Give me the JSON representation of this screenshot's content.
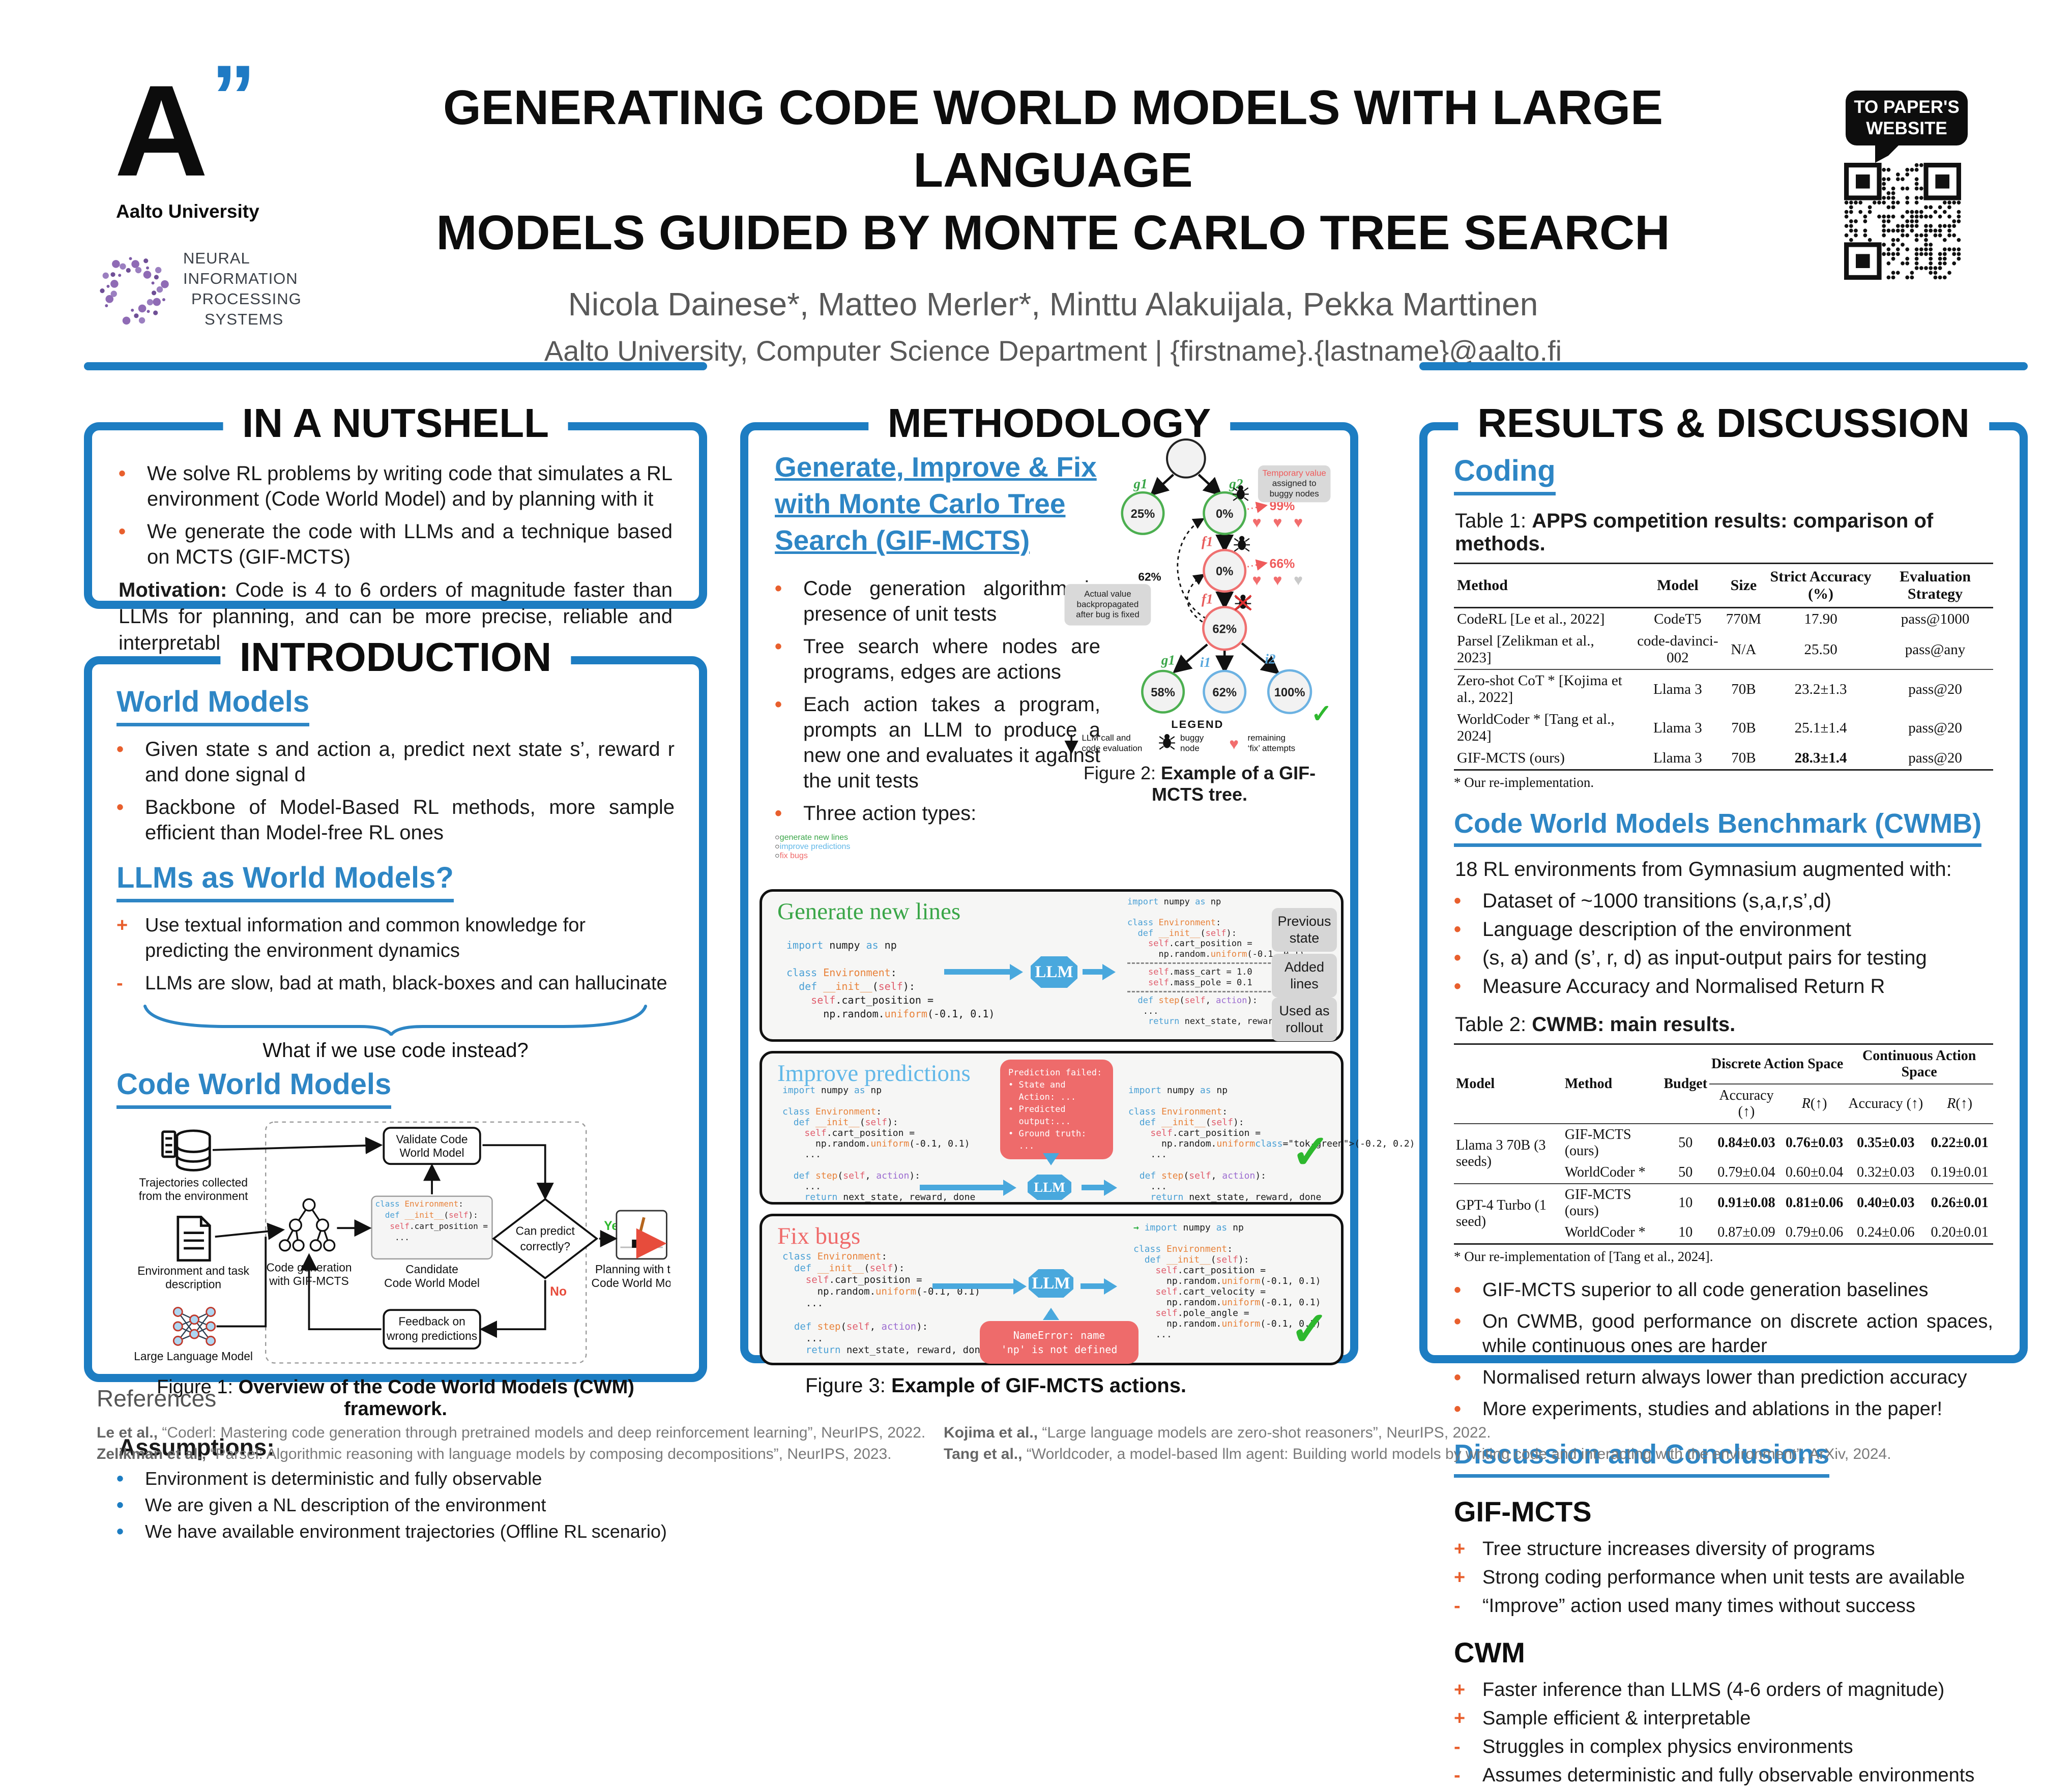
{
  "colors": {
    "accent_blue": "#1d7dc2",
    "link_blue": "#2e86c5",
    "orange": "#e85f2d",
    "green": "#3aa648",
    "light_blue": "#62b8e8",
    "red": "#ef6a6a"
  },
  "icons": {
    "heart": "♥",
    "check": "✓",
    "right_arrow": "→",
    "bullet": "•",
    "circle": "○",
    "plus": "+",
    "minus": "-"
  },
  "header": {
    "aalto_a": "A",
    "aalto_quotes": "”",
    "aalto_caption": "Aalto University",
    "neurips_lines": [
      "NEURAL",
      "INFORMATION",
      "PROCESSING",
      "SYSTEMS"
    ],
    "title_line1": "GENERATING CODE WORLD MODELS WITH LARGE LANGUAGE",
    "title_line2": "MODELS GUIDED BY MONTE CARLO TREE SEARCH",
    "authors": "Nicola Dainese*, Matteo Merler*, Minttu Alakuijala, Pekka Marttinen",
    "affiliation": "Aalto University, Computer Science Department  |  {firstname}.{lastname}@aalto.fi",
    "badge": "TO PAPER'S WEBSITE"
  },
  "nutshell": {
    "title": "IN A NUTSHELL",
    "bullets": [
      "We solve RL problems by writing code that simulates a RL environment (Code World Model) and by planning with it",
      "We generate the code with LLMs and a technique based on MCTS (GIF-MCTS)"
    ],
    "motivation_label": "Motivation:",
    "motivation_text": " Code is 4 to 6 orders of magnitude faster than LLMs for planning, and can be more precise, reliable and interpretable"
  },
  "intro": {
    "title": "INTRODUCTION",
    "wm_heading": "World Models",
    "wm_bullets": [
      "Given state s and action a, predict next state s’, reward r and done signal d",
      "Backbone of Model-Based RL methods, more sample efficient than Model-free RL ones"
    ],
    "llm_heading": "LLMs as World Models?",
    "llm_points": [
      {
        "sign": "+",
        "text": "Use textual information and common knowledge for predicting the environment dynamics"
      },
      {
        "sign": "-",
        "text": "LLMs are slow, bad at math, black-boxes and can hallucinate"
      }
    ],
    "brace_question": "What if we use code instead?",
    "cwm_heading": "Code World Models",
    "figure1": {
      "traj1": "Trajectories collected",
      "traj2": "from the environment",
      "env1": "Environment and task",
      "env2": "description",
      "llm": "Large Language Model",
      "validate1": "Validate Code",
      "validate2": "World Model",
      "codegen1": "Code generation",
      "codegen2": "with GIF-MCTS",
      "cand1": "Candidate",
      "cand2": "Code World Model",
      "code_lines": [
        "class Environment:",
        "  def __init__(self):",
        "   self.cart_position =",
        "    ..."
      ],
      "predict1": "Can predict",
      "predict2": "correctly?",
      "yes": "Yes",
      "no": "No",
      "feedback1": "Feedback on",
      "feedback2": "wrong predictions",
      "plan1": "Planning with the",
      "plan2": "Code World Model"
    },
    "fig1_caption_prefix": "Figure 1: ",
    "fig1_caption_bold": "Overview of the Code World Models (CWM) framework.",
    "assumptions_title": "Assumptions:",
    "assumptions": [
      "Environment is deterministic and fully observable",
      "We are given a NL description of the environment",
      "We have available environment  trajectories (Offline RL scenario)"
    ]
  },
  "methodology": {
    "title": "METHODOLOGY",
    "heading": "Generate, Improve & Fix with Monte Carlo Tree Search (GIF-MCTS)",
    "bullets": [
      "Code generation algorithm in presence of unit tests",
      "Tree search where nodes are programs, edges are actions",
      "Each action takes a program, prompts an LLM to produce a new one and evaluates it against the unit tests"
    ],
    "actions_label": "Three action types:",
    "actions": [
      {
        "text": "generate new lines",
        "color": "#3aa648"
      },
      {
        "text": "improve predictions",
        "color": "#62b8e8"
      },
      {
        "text": "fix bugs",
        "color": "#ef6a6a"
      }
    ],
    "figure2": {
      "nodes": {
        "n25": "25%",
        "n0a": "0%",
        "n0b": "0%",
        "n62": "62%",
        "n58": "58%",
        "n62b": "62%",
        "n100": "100%"
      },
      "edges": {
        "g1": "g1",
        "g2": "g2",
        "f1a": "f1",
        "f1b": "f1",
        "g1b": "g1",
        "i1": "i1",
        "i2": "i2"
      },
      "temp99": "99%",
      "temp66": "66%",
      "backprop": "62%",
      "tempbox": [
        "Temporary value",
        "assigned to",
        "buggy nodes"
      ],
      "actualbox": [
        "Actual value",
        "backpropagated",
        "after bug is fixed"
      ],
      "legend_title": "LEGEND",
      "legend1a": "LLM call and",
      "legend1b": "code evaluation",
      "legend2a": "buggy",
      "legend2b": "node",
      "legend3a": "remaining",
      "legend3b": "‘fix’ attempts",
      "caption_prefix": "Figure 2: ",
      "caption_bold": "Example of a GIF-MCTS tree."
    },
    "figure3": {
      "llm": "LLM",
      "generate": {
        "title": "Generate new lines",
        "left": [
          "import numpy as np",
          "",
          "class Environment:",
          "  def __init__(self):",
          "    self.cart_position =",
          "      np.random.uniform(-0.1, 0.1)"
        ],
        "right": [
          "import numpy as np",
          "",
          "class Environment:",
          "  def __init__(self):",
          "    self.cart_position =",
          "      np.random.uniform(-0.1, 0.1)",
          "---",
          "    self.mass_cart = 1.0",
          "    self.mass_pole = 0.1",
          "---",
          "  def step(self, action):",
          "   ...",
          "    return next_state, reward, done"
        ],
        "labels": [
          [
            "Previous",
            "state"
          ],
          [
            "Added",
            "lines"
          ],
          [
            "Used as",
            "rollout"
          ]
        ]
      },
      "improve": {
        "title": "Improve predictions",
        "left": [
          "import numpy as np",
          "",
          "class Environment:",
          "  def __init__(self):",
          "    self.cart_position =",
          "      np.random.uniform(-0.1, 0.1)",
          "    ...",
          "",
          "  def step(self, action):",
          "    ...",
          "    return next_state, reward, done"
        ],
        "fail": [
          "Prediction failed:",
          "• State and",
          "  Action: ...",
          "• Predicted",
          "  output:...",
          "• Ground truth:",
          "  ..."
        ],
        "right": [
          "import numpy as np",
          "",
          "class Environment:",
          "  def __init__(self):",
          "    self.cart_position =",
          "      np.random.uniform(-0.2, 0.2)",
          "    ...",
          "",
          "  def step(self, action):",
          "    ...",
          "    return next_state, reward, done"
        ]
      },
      "fix": {
        "title": "Fix bugs",
        "left": [
          "class Environment:",
          "  def __init__(self):",
          "    self.cart_position =",
          "      np.random.uniform(-0.1, 0.1)",
          "    ...",
          "",
          "  def step(self, action):",
          "    ...",
          "    return next_state, reward, done"
        ],
        "error": [
          "NameError: name",
          "'np' is not defined"
        ],
        "right": [
          "import numpy as np",
          "",
          "class Environment:",
          "  def __init__(self):",
          "    self.cart_position =",
          "      np.random.uniform(-0.1, 0.1)",
          "    self.cart_velocity =",
          "      np.random.uniform(-0.1, 0.1)",
          "    self.pole_angle =",
          "      np.random.uniform(-0.1, 0.1)",
          "    ..."
        ],
        "arrow_index": 0
      },
      "caption_prefix": "Figure 3: ",
      "caption_bold": "Example of GIF-MCTS actions."
    }
  },
  "results": {
    "title": "RESULTS & DISCUSSION",
    "coding_heading": "Coding",
    "table1": {
      "caption_prefix": "Table 1: ",
      "caption_bold": "APPS competition results: comparison of methods.",
      "headers": [
        "Method",
        "Model",
        "Size",
        "Strict Accuracy (%)",
        "Evaluation Strategy"
      ],
      "rows": [
        [
          "CodeRL [Le et al., 2022]",
          "CodeT5",
          "770M",
          "17.90",
          "pass@1000"
        ],
        [
          "Parsel [Zelikman et al., 2023]",
          "code-davinci-002",
          "N/A",
          "25.50",
          "pass@any"
        ],
        [
          "Zero-shot CoT * [Kojima et al., 2022]",
          "Llama 3",
          "70B",
          "23.2±1.3",
          "pass@20"
        ],
        [
          "WorldCoder * [Tang et al., 2024]",
          "Llama 3",
          "70B",
          "25.1±1.4",
          "pass@20"
        ],
        [
          "GIF-MCTS (ours)",
          "Llama 3",
          "70B",
          "28.3±1.4",
          "pass@20"
        ]
      ],
      "bold_row": 4,
      "bold_col": 3,
      "group_start": 2,
      "footnote": "* Our re-implementation."
    },
    "cwmb_heading": "Code World Models Benchmark (CWMB)",
    "cwmb_intro": "18 RL environments from Gymnasium augmented with:",
    "cwmb_bullets": [
      "Dataset of ~1000 transitions (s,a,r,s’,d)",
      "Language description of the environment",
      "(s, a) and (s’, r, d) as input-output pairs for testing",
      "Measure Accuracy and Normalised Return R"
    ],
    "table2": {
      "caption_prefix": "Table 2: ",
      "caption_bold": "CWMB: main results.",
      "h_model": "Model",
      "h_method": "Method",
      "h_budget": "Budget",
      "h_discrete": "Discrete Action Space",
      "h_continuous": "Continuous Action Space",
      "h_acc": "Accuracy (↑)",
      "h_r": "R(↑)",
      "groups": [
        {
          "model": "Llama 3 70B (3 seeds)",
          "rows": [
            {
              "method": "GIF-MCTS (ours)",
              "budget": "50",
              "vals": [
                "0.84±0.03",
                "0.76±0.03",
                "0.35±0.03",
                "0.22±0.01"
              ],
              "bold": true
            },
            {
              "method": "WorldCoder *",
              "budget": "50",
              "vals": [
                "0.79±0.04",
                "0.60±0.04",
                "0.32±0.03",
                "0.19±0.01"
              ],
              "bold": false
            }
          ]
        },
        {
          "model": "GPT-4 Turbo (1 seed)",
          "rows": [
            {
              "method": "GIF-MCTS (ours)",
              "budget": "10",
              "vals": [
                "0.91±0.08",
                "0.81±0.06",
                "0.40±0.03",
                "0.26±0.01"
              ],
              "bold": true
            },
            {
              "method": "WorldCoder *",
              "budget": "10",
              "vals": [
                "0.87±0.09",
                "0.79±0.06",
                "0.24±0.06",
                "0.20±0.01"
              ],
              "bold": false
            }
          ]
        }
      ],
      "footnote": "* Our re-implementation of [Tang et al., 2024]."
    },
    "findings": [
      "GIF-MCTS superior to all code generation baselines",
      "On CWMB, good performance on discrete action spaces, while continuous ones are harder",
      "Normalised return always lower than prediction accuracy",
      "More experiments, studies and ablations in the paper!"
    ],
    "discussion_heading": "Discussion and Conclusions",
    "gif_heading": "GIF-MCTS",
    "gif_points": [
      {
        "sign": "+",
        "text": "Tree structure increases diversity of programs"
      },
      {
        "sign": "+",
        "text": "Strong coding performance when unit tests are available"
      },
      {
        "sign": "-",
        "text": "“Improve” action used many times without success"
      }
    ],
    "cwm_heading": "CWM",
    "cwm_points": [
      {
        "sign": "+",
        "text": "Faster inference than LLMS (4-6 orders of magnitude)"
      },
      {
        "sign": "+",
        "text": "Sample efficient & interpretable"
      },
      {
        "sign": "-",
        "text": "Struggles in complex physics environments"
      },
      {
        "sign": "-",
        "text": "Assumes deterministic and fully observable environments"
      }
    ]
  },
  "references": {
    "title": "References",
    "left": [
      {
        "authors": "Le et al.,",
        "rest": " “Coderl: Mastering code generation through pretrained models and deep reinforcement learning”, NeurIPS, 2022."
      },
      {
        "authors": "Zelikman et al.,",
        "rest": " “Parsel: Algorithmic reasoning with language models by composing decompositions”, NeurIPS, 2023."
      }
    ],
    "right": [
      {
        "authors": "Kojima et al.,",
        "rest": " “Large language models are zero-shot reasoners”, NeurIPS, 2022."
      },
      {
        "authors": "Tang et al.,",
        "rest": " “Worldcoder, a model-based llm agent: Building world models by writing code and interacting with the environment”, ArXiv, 2024."
      }
    ]
  }
}
